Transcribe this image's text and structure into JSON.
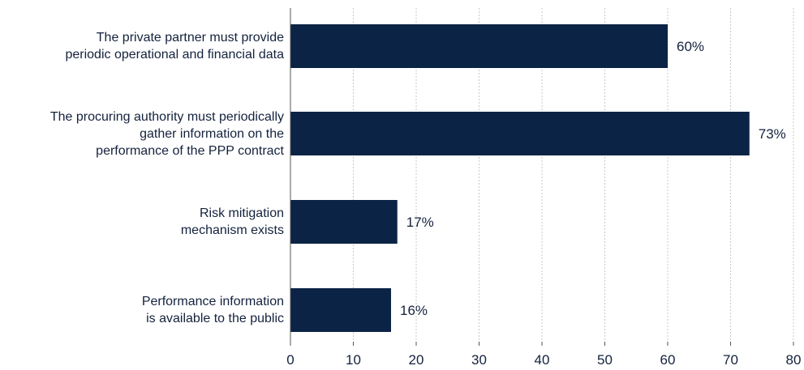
{
  "chart_data": {
    "type": "bar",
    "orientation": "horizontal",
    "categories": [
      "The private partner must provide periodic operational and financial data",
      "The procuring authority must periodically gather information on the performance of the PPP contract",
      "Risk mitigation mechanism exists",
      "Performance information is available to the public"
    ],
    "category_lines": [
      [
        "The private partner must provide",
        "periodic operational and financial data"
      ],
      [
        "The procuring authority must periodically",
        "gather information on the",
        "performance of the PPP contract"
      ],
      [
        "Risk mitigation",
        "mechanism exists"
      ],
      [
        "Performance information",
        "is available to the public"
      ]
    ],
    "values": [
      60,
      73,
      17,
      16
    ],
    "value_labels": [
      "60%",
      "73%",
      "17%",
      "16%"
    ],
    "xlim": [
      0,
      80
    ],
    "xticks": [
      0,
      10,
      20,
      30,
      40,
      50,
      60,
      70,
      80
    ],
    "xtick_labels": [
      "0",
      "10",
      "20",
      "30",
      "40",
      "50",
      "60",
      "70",
      "80"
    ],
    "grid": "vertical dotted",
    "title": "",
    "xlabel": "",
    "ylabel": "",
    "colors": {
      "bar": "#0b2345",
      "text": "#14223d",
      "grid": "#c8c8c8",
      "axis": "#555555"
    }
  }
}
